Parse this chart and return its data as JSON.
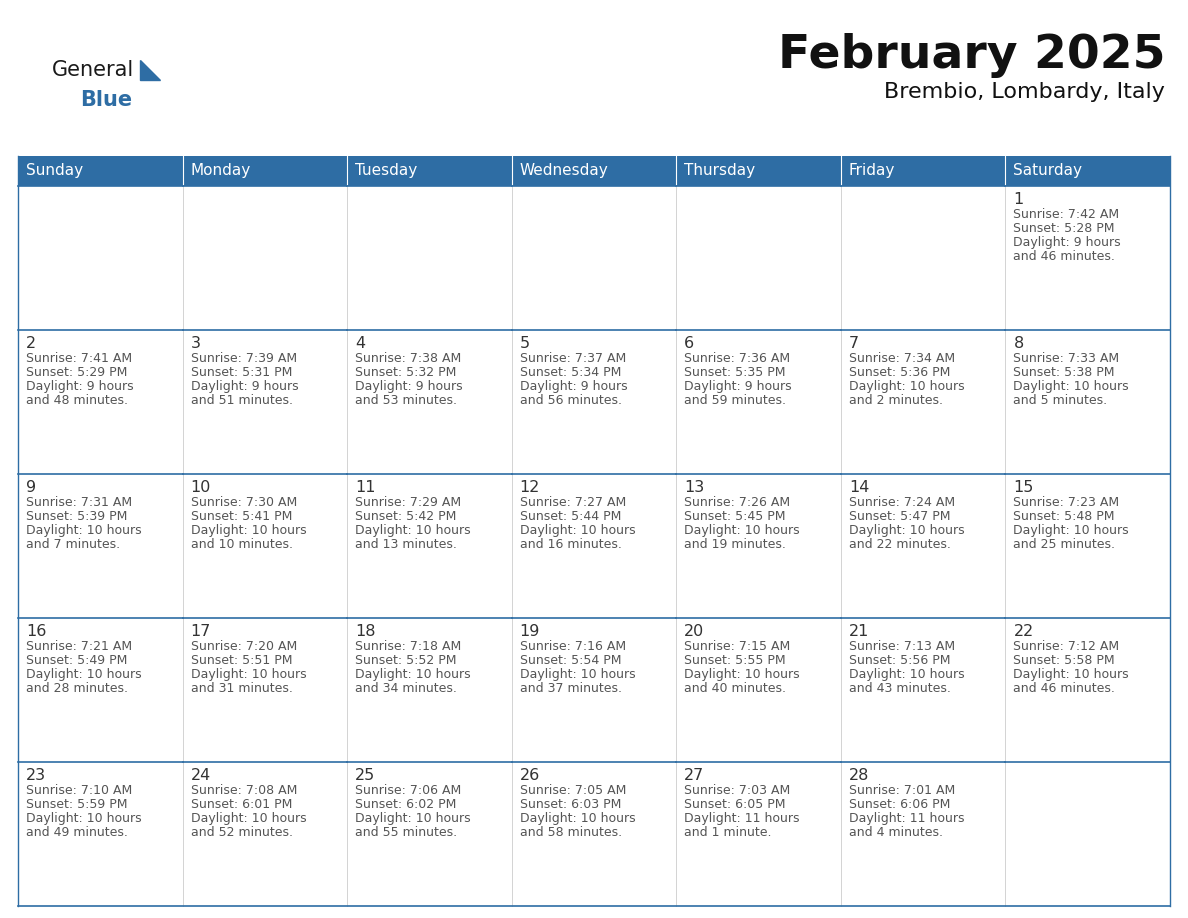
{
  "title": "February 2025",
  "subtitle": "Brembio, Lombardy, Italy",
  "header_bg": "#2E6DA4",
  "header_text_color": "#FFFFFF",
  "cell_bg": "#FFFFFF",
  "border_color": "#2E6DA4",
  "text_color": "#555555",
  "day_num_color": "#333333",
  "days_of_week": [
    "Sunday",
    "Monday",
    "Tuesday",
    "Wednesday",
    "Thursday",
    "Friday",
    "Saturday"
  ],
  "calendar_data": [
    [
      null,
      null,
      null,
      null,
      null,
      null,
      {
        "day": "1",
        "sunrise": "7:42 AM",
        "sunset": "5:28 PM",
        "daylight1": "Daylight: 9 hours",
        "daylight2": "and 46 minutes."
      }
    ],
    [
      {
        "day": "2",
        "sunrise": "7:41 AM",
        "sunset": "5:29 PM",
        "daylight1": "Daylight: 9 hours",
        "daylight2": "and 48 minutes."
      },
      {
        "day": "3",
        "sunrise": "7:39 AM",
        "sunset": "5:31 PM",
        "daylight1": "Daylight: 9 hours",
        "daylight2": "and 51 minutes."
      },
      {
        "day": "4",
        "sunrise": "7:38 AM",
        "sunset": "5:32 PM",
        "daylight1": "Daylight: 9 hours",
        "daylight2": "and 53 minutes."
      },
      {
        "day": "5",
        "sunrise": "7:37 AM",
        "sunset": "5:34 PM",
        "daylight1": "Daylight: 9 hours",
        "daylight2": "and 56 minutes."
      },
      {
        "day": "6",
        "sunrise": "7:36 AM",
        "sunset": "5:35 PM",
        "daylight1": "Daylight: 9 hours",
        "daylight2": "and 59 minutes."
      },
      {
        "day": "7",
        "sunrise": "7:34 AM",
        "sunset": "5:36 PM",
        "daylight1": "Daylight: 10 hours",
        "daylight2": "and 2 minutes."
      },
      {
        "day": "8",
        "sunrise": "7:33 AM",
        "sunset": "5:38 PM",
        "daylight1": "Daylight: 10 hours",
        "daylight2": "and 5 minutes."
      }
    ],
    [
      {
        "day": "9",
        "sunrise": "7:31 AM",
        "sunset": "5:39 PM",
        "daylight1": "Daylight: 10 hours",
        "daylight2": "and 7 minutes."
      },
      {
        "day": "10",
        "sunrise": "7:30 AM",
        "sunset": "5:41 PM",
        "daylight1": "Daylight: 10 hours",
        "daylight2": "and 10 minutes."
      },
      {
        "day": "11",
        "sunrise": "7:29 AM",
        "sunset": "5:42 PM",
        "daylight1": "Daylight: 10 hours",
        "daylight2": "and 13 minutes."
      },
      {
        "day": "12",
        "sunrise": "7:27 AM",
        "sunset": "5:44 PM",
        "daylight1": "Daylight: 10 hours",
        "daylight2": "and 16 minutes."
      },
      {
        "day": "13",
        "sunrise": "7:26 AM",
        "sunset": "5:45 PM",
        "daylight1": "Daylight: 10 hours",
        "daylight2": "and 19 minutes."
      },
      {
        "day": "14",
        "sunrise": "7:24 AM",
        "sunset": "5:47 PM",
        "daylight1": "Daylight: 10 hours",
        "daylight2": "and 22 minutes."
      },
      {
        "day": "15",
        "sunrise": "7:23 AM",
        "sunset": "5:48 PM",
        "daylight1": "Daylight: 10 hours",
        "daylight2": "and 25 minutes."
      }
    ],
    [
      {
        "day": "16",
        "sunrise": "7:21 AM",
        "sunset": "5:49 PM",
        "daylight1": "Daylight: 10 hours",
        "daylight2": "and 28 minutes."
      },
      {
        "day": "17",
        "sunrise": "7:20 AM",
        "sunset": "5:51 PM",
        "daylight1": "Daylight: 10 hours",
        "daylight2": "and 31 minutes."
      },
      {
        "day": "18",
        "sunrise": "7:18 AM",
        "sunset": "5:52 PM",
        "daylight1": "Daylight: 10 hours",
        "daylight2": "and 34 minutes."
      },
      {
        "day": "19",
        "sunrise": "7:16 AM",
        "sunset": "5:54 PM",
        "daylight1": "Daylight: 10 hours",
        "daylight2": "and 37 minutes."
      },
      {
        "day": "20",
        "sunrise": "7:15 AM",
        "sunset": "5:55 PM",
        "daylight1": "Daylight: 10 hours",
        "daylight2": "and 40 minutes."
      },
      {
        "day": "21",
        "sunrise": "7:13 AM",
        "sunset": "5:56 PM",
        "daylight1": "Daylight: 10 hours",
        "daylight2": "and 43 minutes."
      },
      {
        "day": "22",
        "sunrise": "7:12 AM",
        "sunset": "5:58 PM",
        "daylight1": "Daylight: 10 hours",
        "daylight2": "and 46 minutes."
      }
    ],
    [
      {
        "day": "23",
        "sunrise": "7:10 AM",
        "sunset": "5:59 PM",
        "daylight1": "Daylight: 10 hours",
        "daylight2": "and 49 minutes."
      },
      {
        "day": "24",
        "sunrise": "7:08 AM",
        "sunset": "6:01 PM",
        "daylight1": "Daylight: 10 hours",
        "daylight2": "and 52 minutes."
      },
      {
        "day": "25",
        "sunrise": "7:06 AM",
        "sunset": "6:02 PM",
        "daylight1": "Daylight: 10 hours",
        "daylight2": "and 55 minutes."
      },
      {
        "day": "26",
        "sunrise": "7:05 AM",
        "sunset": "6:03 PM",
        "daylight1": "Daylight: 10 hours",
        "daylight2": "and 58 minutes."
      },
      {
        "day": "27",
        "sunrise": "7:03 AM",
        "sunset": "6:05 PM",
        "daylight1": "Daylight: 11 hours",
        "daylight2": "and 1 minute."
      },
      {
        "day": "28",
        "sunrise": "7:01 AM",
        "sunset": "6:06 PM",
        "daylight1": "Daylight: 11 hours",
        "daylight2": "and 4 minutes."
      },
      null
    ]
  ],
  "logo_general_color": "#1a1a1a",
  "logo_blue_color": "#2E6DA4",
  "logo_triangle_color": "#2E6DA4"
}
